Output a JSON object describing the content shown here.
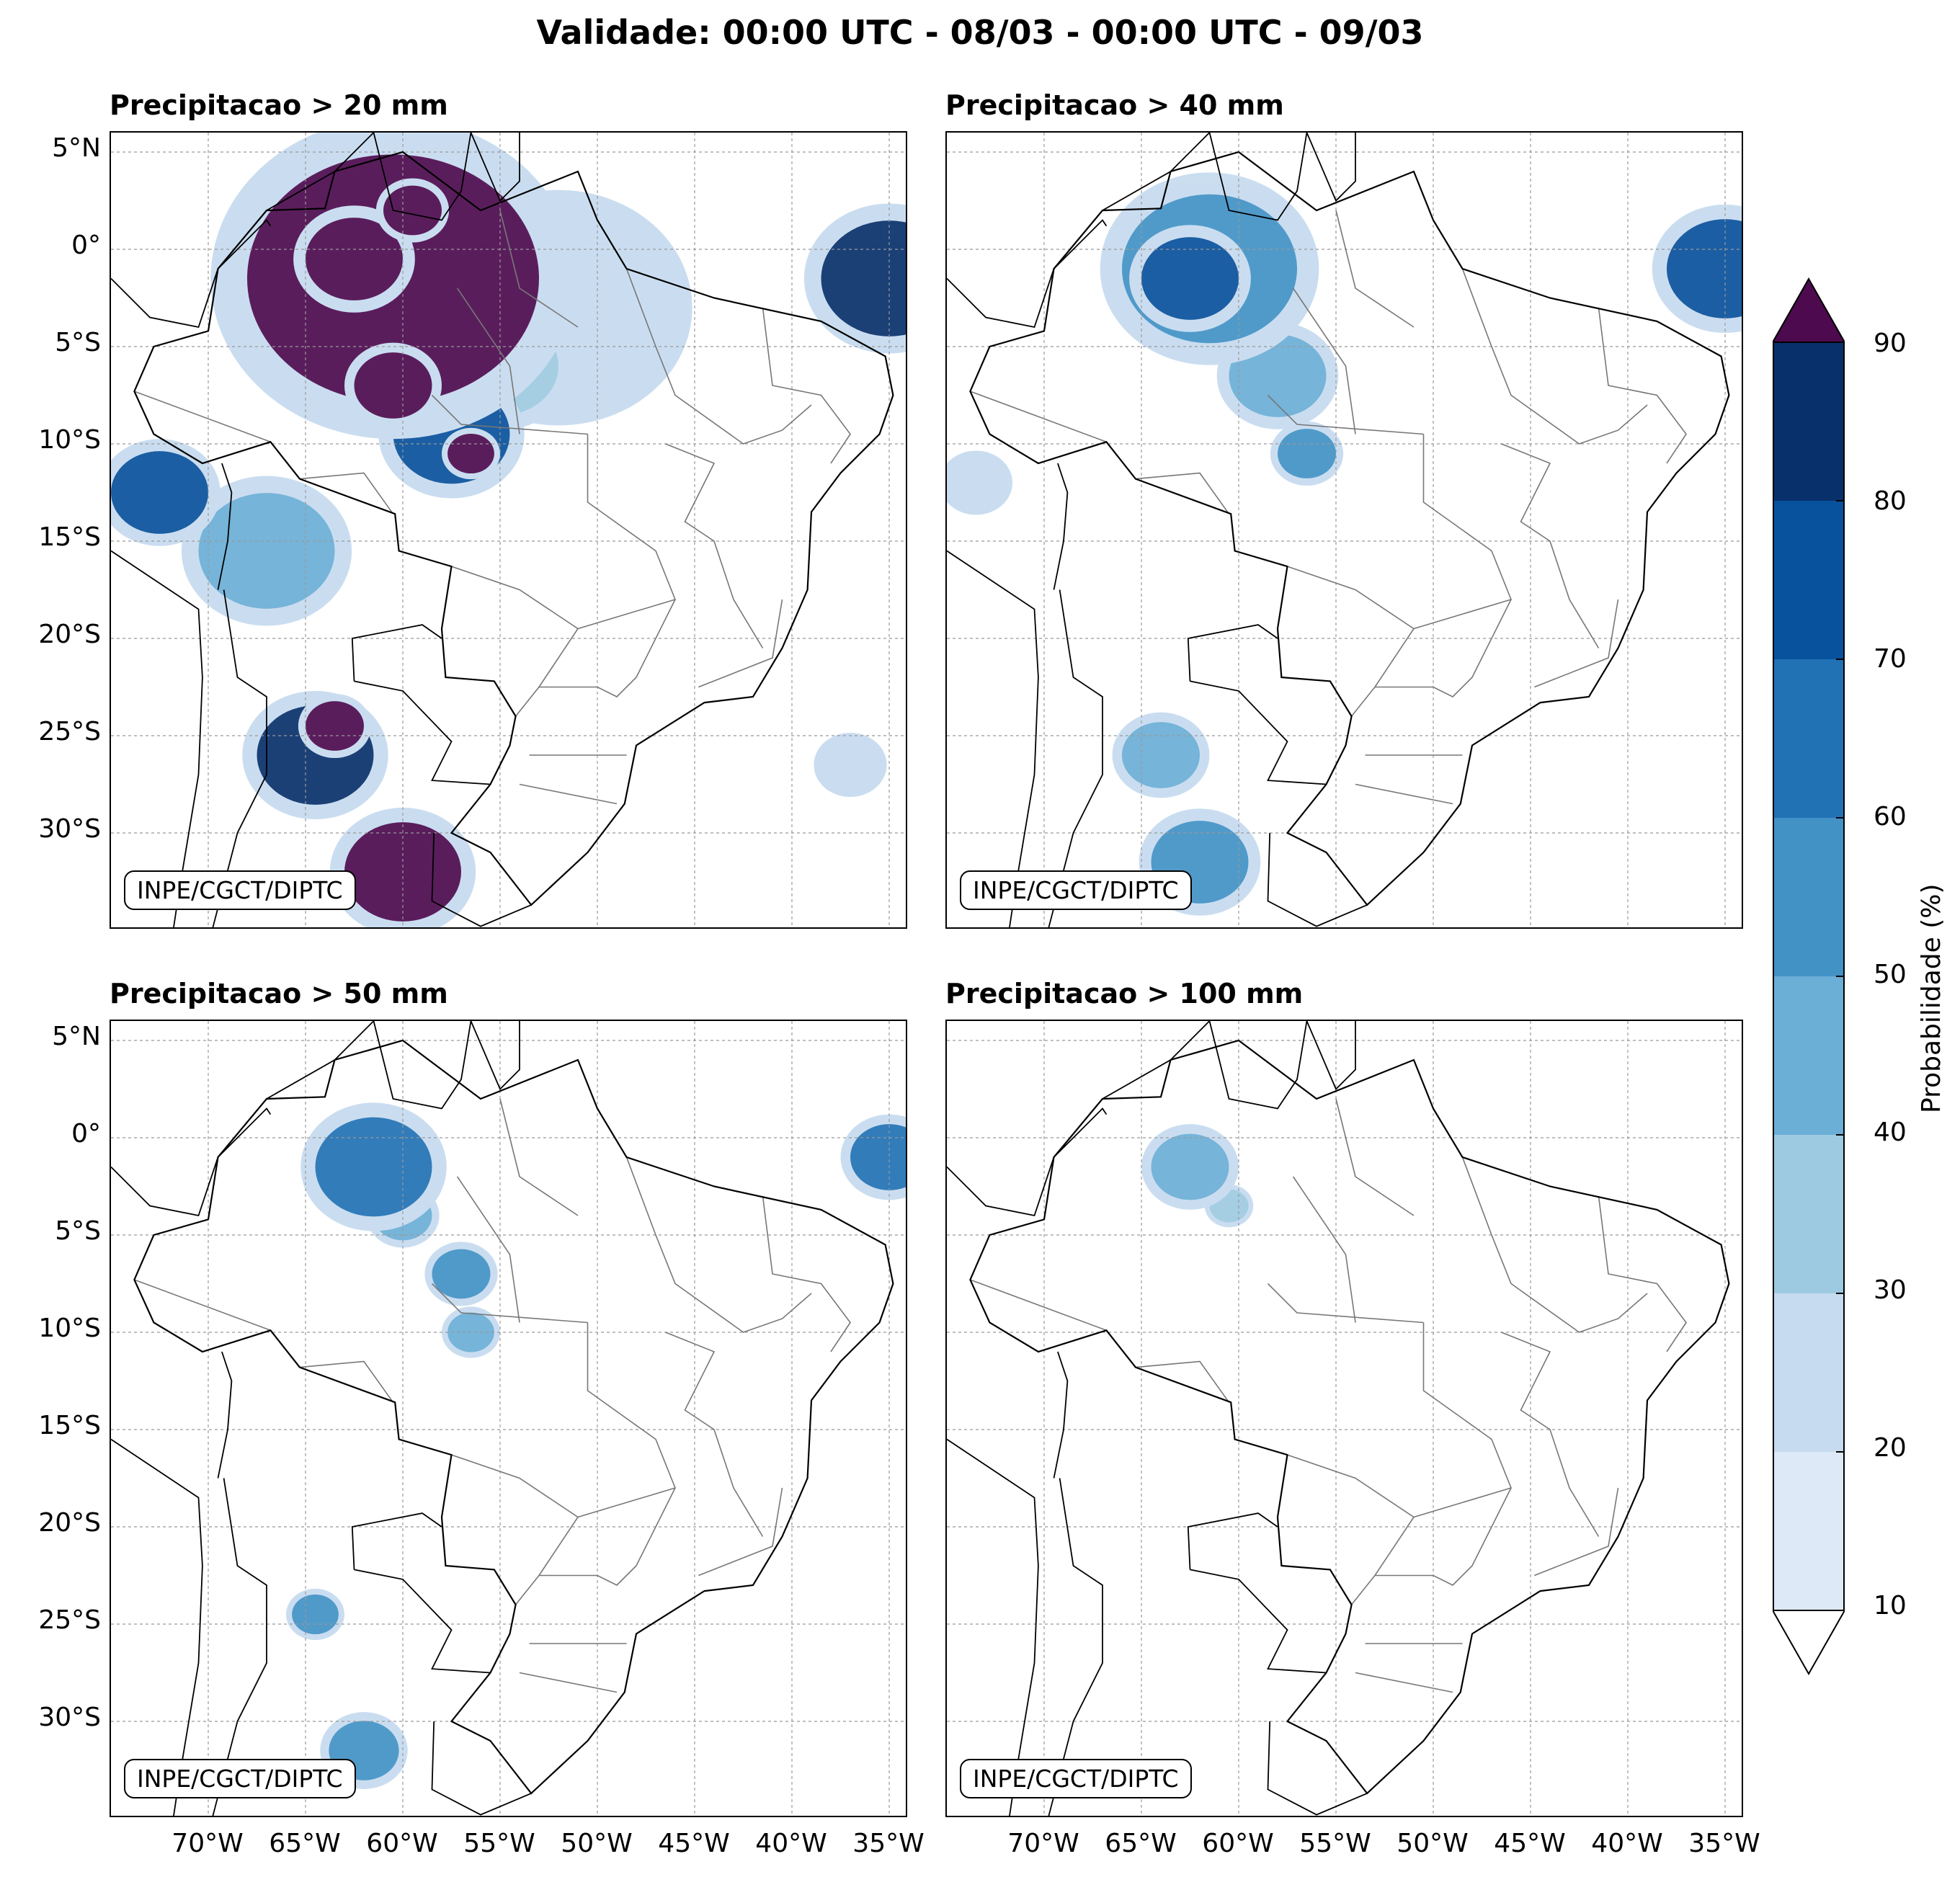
{
  "figure": {
    "title": "Validade: 00:00 UTC - 08/03 - 00:00 UTC - 09/03"
  },
  "axes": {
    "lat_labels": [
      "5°N",
      "0°",
      "5°S",
      "10°S",
      "15°S",
      "20°S",
      "25°S",
      "30°S"
    ],
    "lon_labels": [
      "70°W",
      "65°W",
      "60°W",
      "55°W",
      "50°W",
      "45°W",
      "40°W",
      "35°W"
    ],
    "lat_values": [
      5,
      0,
      -5,
      -10,
      -15,
      -20,
      -25,
      -30
    ],
    "lon_values": [
      -70,
      -65,
      -60,
      -55,
      -50,
      -45,
      -40,
      -35
    ],
    "lat_range": [
      -35,
      6
    ],
    "lon_range": [
      -75,
      -34
    ]
  },
  "panels": [
    {
      "title": "Precipitacao > 20 mm",
      "credit": "INPE/CGCT/DIPTC",
      "blobs": [
        {
          "lon": -60.5,
          "lat": -1.5,
          "r": 7.5,
          "level": 90
        },
        {
          "lon": -59.5,
          "lat": -4.5,
          "r": 3,
          "level": 70
        },
        {
          "lon": -57.5,
          "lat": -9.5,
          "r": 3,
          "level": 70
        },
        {
          "lon": -62.5,
          "lat": -0.5,
          "r": 2.5,
          "level": 90
        },
        {
          "lon": -60.5,
          "lat": -7,
          "r": 2,
          "level": 90
        },
        {
          "lon": -59.5,
          "lat": 2,
          "r": 1.5,
          "level": 90
        },
        {
          "lon": -56.5,
          "lat": -10.5,
          "r": 1.2,
          "level": 90
        },
        {
          "lon": -52,
          "lat": -3,
          "r": 5.5,
          "level": 20
        },
        {
          "lon": -35,
          "lat": -1.5,
          "r": 3.5,
          "level": 80
        },
        {
          "lon": -72.5,
          "lat": -12.5,
          "r": 2.5,
          "level": 70
        },
        {
          "lon": -67,
          "lat": -15.5,
          "r": 3.5,
          "level": 40
        },
        {
          "lon": -64.5,
          "lat": -26,
          "r": 3,
          "level": 80
        },
        {
          "lon": -63.5,
          "lat": -24.5,
          "r": 1.5,
          "level": 90
        },
        {
          "lon": -60,
          "lat": -32,
          "r": 3,
          "level": 90
        },
        {
          "lon": -55,
          "lat": -6,
          "r": 3,
          "level": 30
        },
        {
          "lon": -37,
          "lat": -26.5,
          "r": 1.5,
          "level": 20
        }
      ]
    },
    {
      "title": "Precipitacao > 40 mm",
      "credit": "INPE/CGCT/DIPTC",
      "blobs": [
        {
          "lon": -61.5,
          "lat": -1,
          "r": 4.5,
          "level": 50
        },
        {
          "lon": -62.5,
          "lat": -1.5,
          "r": 2.5,
          "level": 70
        },
        {
          "lon": -58,
          "lat": -6.5,
          "r": 2.5,
          "level": 40
        },
        {
          "lon": -56.5,
          "lat": -10.5,
          "r": 1.5,
          "level": 50
        },
        {
          "lon": -35,
          "lat": -1,
          "r": 3,
          "level": 70
        },
        {
          "lon": -64,
          "lat": -26,
          "r": 2,
          "level": 40
        },
        {
          "lon": -62,
          "lat": -31.5,
          "r": 2.5,
          "level": 50
        },
        {
          "lon": -73.5,
          "lat": -12,
          "r": 1.5,
          "level": 20
        }
      ]
    },
    {
      "title": "Precipitacao > 50 mm",
      "credit": "INPE/CGCT/DIPTC",
      "blobs": [
        {
          "lon": -61.5,
          "lat": -1.5,
          "r": 3,
          "level": 60
        },
        {
          "lon": -60,
          "lat": -4,
          "r": 1.5,
          "level": 40
        },
        {
          "lon": -57,
          "lat": -7,
          "r": 1.5,
          "level": 50
        },
        {
          "lon": -56.5,
          "lat": -10,
          "r": 1.2,
          "level": 40
        },
        {
          "lon": -35,
          "lat": -1,
          "r": 2,
          "level": 60
        },
        {
          "lon": -64.5,
          "lat": -24.5,
          "r": 1.2,
          "level": 50
        },
        {
          "lon": -62,
          "lat": -31.5,
          "r": 1.8,
          "level": 50
        }
      ]
    },
    {
      "title": "Precipitacao > 100 mm",
      "credit": "INPE/CGCT/DIPTC",
      "blobs": [
        {
          "lon": -62.5,
          "lat": -1.5,
          "r": 2,
          "level": 40
        },
        {
          "lon": -60.5,
          "lat": -3.5,
          "r": 1,
          "level": 30
        }
      ]
    }
  ],
  "colorbar": {
    "label": "Probabilidade (%)",
    "ticks": [
      "10",
      "20",
      "30",
      "40",
      "50",
      "60",
      "70",
      "80",
      "90"
    ],
    "levels": [
      10,
      20,
      30,
      40,
      50,
      60,
      70,
      80,
      90
    ],
    "colors": [
      "#dde9f6",
      "#c6dbef",
      "#9ecae1",
      "#6baed6",
      "#4292c6",
      "#2171b5",
      "#08519c",
      "#08306b"
    ],
    "over_color": "#4d0a4f",
    "under_color": "#ffffff"
  },
  "map_colors": {
    "country_border": "#000000",
    "state_border": "#777777",
    "grid": "#999999"
  }
}
